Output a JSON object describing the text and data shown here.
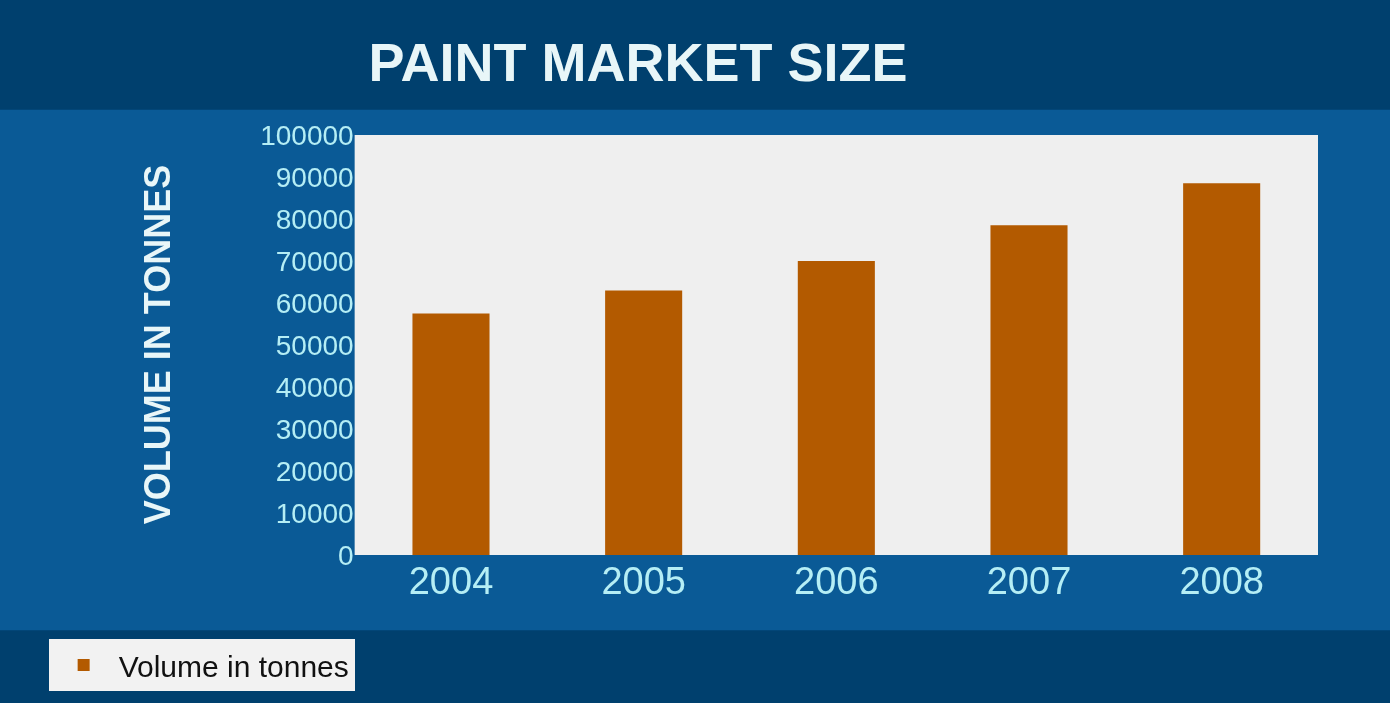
{
  "chart_data": {
    "type": "bar",
    "title": "PAINT MARKET SIZE",
    "ylabel": "VOLUME IN TONNES",
    "categories": [
      "2004",
      "2005",
      "2006",
      "2007",
      "2008"
    ],
    "series": [
      {
        "name": "Volume in tonnes",
        "color": "#b35a00",
        "values": [
          57500,
          63000,
          70000,
          78500,
          88500
        ]
      }
    ],
    "ylim": [
      0,
      100000
    ],
    "yticks": [
      0,
      10000,
      20000,
      30000,
      40000,
      50000,
      60000,
      70000,
      80000,
      90000,
      100000
    ],
    "grid": false,
    "legend": "bottom left"
  }
}
